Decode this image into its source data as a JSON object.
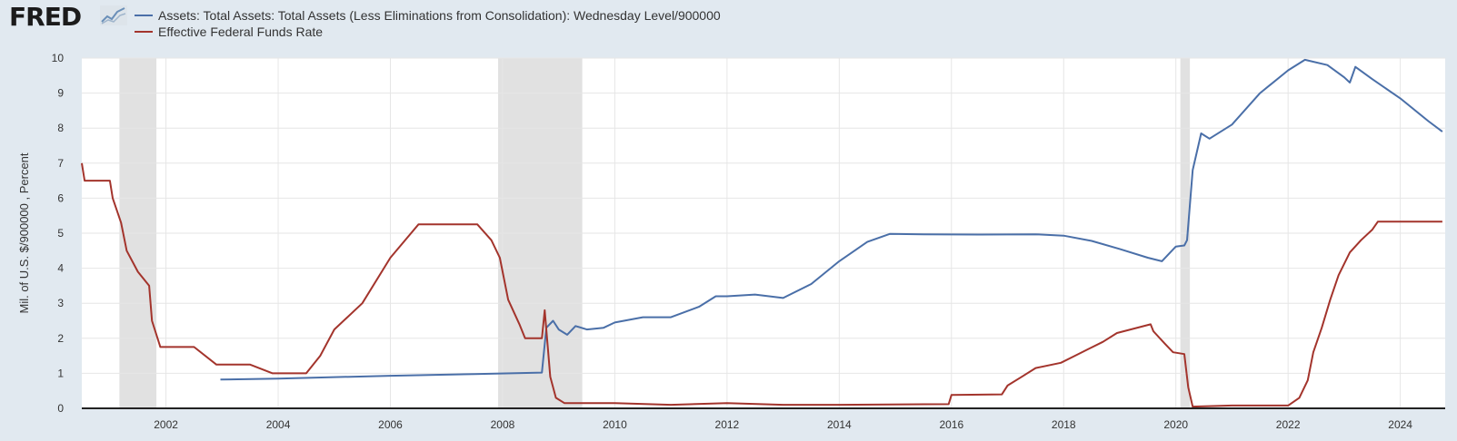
{
  "logo": {
    "text": "FRED",
    "icon": "chart-line-icon"
  },
  "colors": {
    "assets": "#4a6fa8",
    "fedfunds": "#a3342c",
    "recession": "#e1e1e1",
    "plot_bg": "#ffffff",
    "grid": "#e6e6e6"
  },
  "chart_data": {
    "type": "line",
    "ylabel": "Mil. of U.S. $/900000 , Percent",
    "xlim": [
      2000.5,
      2024.8
    ],
    "ylim": [
      0,
      10
    ],
    "xticks": [
      "2002",
      "2004",
      "2006",
      "2008",
      "2010",
      "2012",
      "2014",
      "2016",
      "2018",
      "2020",
      "2022",
      "2024"
    ],
    "yticks": [
      "0",
      "1",
      "2",
      "3",
      "4",
      "5",
      "6",
      "7",
      "8",
      "9",
      "10"
    ],
    "grid": true,
    "legend_position": "top-left",
    "recessions": [
      [
        2001.17,
        2001.83
      ],
      [
        2007.92,
        2009.42
      ],
      [
        2020.08,
        2020.25
      ]
    ],
    "series": [
      {
        "name": "Assets: Total Assets: Total Assets (Less Eliminations from Consolidation): Wednesday Level/900000",
        "x": [
          2002.97,
          2004.0,
          2006.0,
          2007.5,
          2008.7,
          2008.78,
          2008.9,
          2009.0,
          2009.15,
          2009.3,
          2009.5,
          2009.8,
          2010.0,
          2010.5,
          2011.0,
          2011.5,
          2011.8,
          2012.0,
          2012.5,
          2013.0,
          2013.5,
          2014.0,
          2014.5,
          2014.9,
          2015.5,
          2016.5,
          2017.5,
          2018.0,
          2018.5,
          2019.0,
          2019.5,
          2019.75,
          2019.9,
          2020.0,
          2020.15,
          2020.2,
          2020.3,
          2020.45,
          2020.6,
          2021.0,
          2021.5,
          2022.0,
          2022.3,
          2022.7,
          2023.0,
          2023.1,
          2023.2,
          2023.5,
          2024.0,
          2024.5,
          2024.75
        ],
        "y": [
          0.82,
          0.85,
          0.93,
          0.98,
          1.02,
          2.3,
          2.5,
          2.25,
          2.1,
          2.35,
          2.25,
          2.3,
          2.45,
          2.6,
          2.6,
          2.9,
          3.2,
          3.2,
          3.25,
          3.15,
          3.55,
          4.2,
          4.75,
          4.98,
          4.97,
          4.96,
          4.97,
          4.93,
          4.78,
          4.55,
          4.3,
          4.2,
          4.45,
          4.62,
          4.65,
          4.8,
          6.8,
          7.85,
          7.7,
          8.1,
          9.0,
          9.65,
          9.95,
          9.8,
          9.45,
          9.3,
          9.75,
          9.4,
          8.85,
          8.2,
          7.9
        ]
      },
      {
        "name": "Effective Federal Funds Rate",
        "x": [
          2000.5,
          2000.55,
          2000.8,
          2001.0,
          2001.05,
          2001.2,
          2001.3,
          2001.5,
          2001.7,
          2001.75,
          2001.9,
          2002.5,
          2002.9,
          2003.5,
          2003.9,
          2004.5,
          2004.75,
          2005.0,
          2005.5,
          2006.0,
          2006.5,
          2007.0,
          2007.55,
          2007.8,
          2007.95,
          2008.1,
          2008.3,
          2008.4,
          2008.7,
          2008.75,
          2008.85,
          2008.95,
          2009.1,
          2010.0,
          2011.0,
          2012.0,
          2013.0,
          2014.0,
          2015.95,
          2016.0,
          2016.9,
          2017.0,
          2017.25,
          2017.5,
          2017.95,
          2018.2,
          2018.45,
          2018.7,
          2018.95,
          2019.55,
          2019.6,
          2019.8,
          2019.95,
          2020.15,
          2020.22,
          2020.3,
          2021.0,
          2022.0,
          2022.2,
          2022.35,
          2022.45,
          2022.6,
          2022.75,
          2022.9,
          2023.1,
          2023.3,
          2023.5,
          2023.6,
          2024.7,
          2024.75
        ],
        "y": [
          7.0,
          6.5,
          6.5,
          6.5,
          6.0,
          5.3,
          4.5,
          3.9,
          3.5,
          2.5,
          1.75,
          1.75,
          1.25,
          1.25,
          1.0,
          1.0,
          1.5,
          2.25,
          3.0,
          4.3,
          5.25,
          5.25,
          5.25,
          4.8,
          4.3,
          3.1,
          2.4,
          2.0,
          2.0,
          2.8,
          0.9,
          0.3,
          0.15,
          0.15,
          0.1,
          0.15,
          0.1,
          0.1,
          0.12,
          0.38,
          0.4,
          0.65,
          0.9,
          1.15,
          1.3,
          1.5,
          1.7,
          1.9,
          2.15,
          2.4,
          2.2,
          1.85,
          1.6,
          1.55,
          0.6,
          0.05,
          0.08,
          0.08,
          0.3,
          0.8,
          1.6,
          2.3,
          3.1,
          3.8,
          4.45,
          4.8,
          5.1,
          5.33,
          5.33,
          5.33
        ]
      }
    ]
  }
}
